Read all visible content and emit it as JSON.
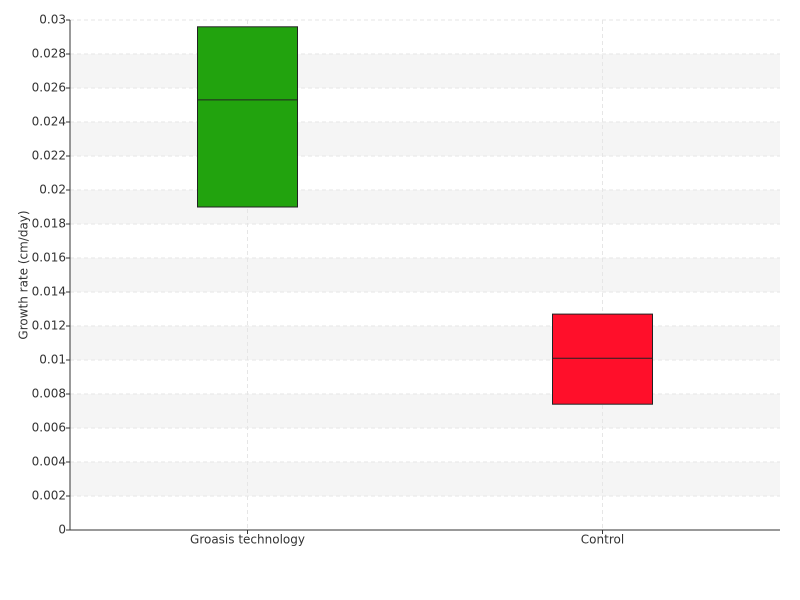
{
  "chart_data": {
    "type": "box",
    "y_label": "Growth rate (cm/day)",
    "categories": [
      "Groasis technology",
      "Control"
    ],
    "q1": [
      0.019,
      0.0074
    ],
    "median": [
      0.0253,
      0.0101
    ],
    "q3": [
      0.0296,
      0.0127
    ],
    "colors": [
      "#22a30e",
      "#ff0f2a"
    ],
    "ylim": [
      0,
      0.03
    ],
    "yticks": [
      0,
      0.002,
      0.004,
      0.006,
      0.008,
      0.01,
      0.012,
      0.014,
      0.016,
      0.018,
      0.02,
      0.022,
      0.024,
      0.026,
      0.028,
      0.03
    ],
    "grid": true
  }
}
